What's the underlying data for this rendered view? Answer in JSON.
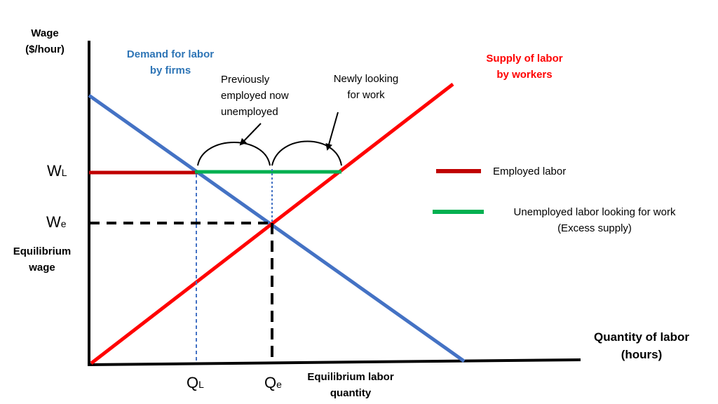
{
  "y_axis": {
    "label_line1": "Wage",
    "label_line2": "($/hour)"
  },
  "x_axis": {
    "label_line1": "Quantity of labor",
    "label_line2": "(hours)"
  },
  "demand": {
    "label_line1": "Demand for labor",
    "label_line2": "by firms",
    "color": "#4472C4"
  },
  "supply": {
    "label_line1": "Supply of labor",
    "label_line2": "by workers",
    "color": "#FF0000"
  },
  "annotations": {
    "previously_line1": "Previously",
    "previously_line2": "employed now",
    "previously_line3": "unemployed",
    "newly_line1": "Newly looking",
    "newly_line2": "for work"
  },
  "ticks": {
    "wl_main": "W",
    "wl_sub": "L",
    "we_main": "W",
    "we_sub": "e",
    "ql_main": "Q",
    "ql_sub": "L",
    "qe_main": "Q",
    "qe_sub": "e"
  },
  "equilibrium_wage": {
    "line1": "Equilibrium",
    "line2": "wage"
  },
  "equilibrium_quantity": {
    "line1": "Equilibrium labor",
    "line2": "quantity"
  },
  "legend": {
    "employed": {
      "label": "Employed labor",
      "color": "#C00000"
    },
    "unemployed": {
      "label_line1": "Unemployed labor  looking for work",
      "label_line2": "(Excess supply)",
      "color": "#00B050"
    }
  }
}
